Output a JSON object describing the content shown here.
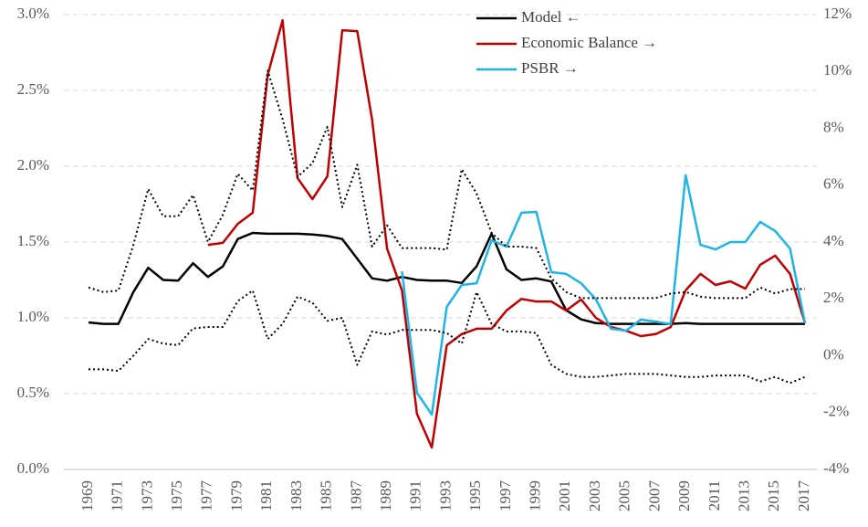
{
  "chart_data": {
    "type": "line",
    "x": [
      1969,
      1970,
      1971,
      1972,
      1973,
      1974,
      1975,
      1976,
      1977,
      1978,
      1979,
      1980,
      1981,
      1982,
      1983,
      1984,
      1985,
      1986,
      1987,
      1988,
      1989,
      1990,
      1991,
      1992,
      1993,
      1994,
      1995,
      1996,
      1997,
      1998,
      1999,
      2000,
      2001,
      2002,
      2003,
      2004,
      2005,
      2006,
      2007,
      2008,
      2009,
      2010,
      2011,
      2012,
      2013,
      2014,
      2015,
      2016,
      2017
    ],
    "xlim": [
      1969,
      2017
    ],
    "xticks": [
      1969,
      1971,
      1973,
      1975,
      1977,
      1979,
      1981,
      1983,
      1985,
      1987,
      1989,
      1991,
      1993,
      1995,
      1997,
      1999,
      2001,
      2003,
      2005,
      2007,
      2009,
      2011,
      2013,
      2015,
      2017
    ],
    "ylim": [
      0,
      3
    ],
    "yticks": [
      {
        "value": 0,
        "label": "0.0%"
      },
      {
        "value": 0.5,
        "label": "0.5%"
      },
      {
        "value": 1,
        "label": "1.0%"
      },
      {
        "value": 1.5,
        "label": "1.5%"
      },
      {
        "value": 2,
        "label": "2.0%"
      },
      {
        "value": 2.5,
        "label": "2.5%"
      },
      {
        "value": 3,
        "label": "3.0%"
      }
    ],
    "y2lim": [
      -4,
      12
    ],
    "y2ticks": [
      {
        "value": -4,
        "label": "-4%"
      },
      {
        "value": -2,
        "label": "-2%"
      },
      {
        "value": 0,
        "label": "0%"
      },
      {
        "value": 2,
        "label": "2%"
      },
      {
        "value": 4,
        "label": "4%"
      },
      {
        "value": 6,
        "label": "6%"
      },
      {
        "value": 8,
        "label": "8%"
      },
      {
        "value": 10,
        "label": "10%"
      },
      {
        "value": 12,
        "label": "12%"
      }
    ],
    "grid": true,
    "legend": "top",
    "series": [
      {
        "name": "Model ←",
        "color": "#000000",
        "values": [
          0.97,
          0.96,
          0.96,
          1.17,
          1.33,
          1.25,
          1.245,
          1.36,
          1.27,
          1.34,
          1.52,
          1.56,
          1.555,
          1.555,
          1.555,
          1.55,
          1.54,
          1.52,
          1.39,
          1.26,
          1.245,
          1.27,
          1.25,
          1.245,
          1.245,
          1.23,
          1.34,
          1.555,
          1.32,
          1.25,
          1.26,
          1.24,
          1.05,
          0.99,
          0.965,
          0.96,
          0.96,
          0.96,
          0.96,
          0.96,
          0.965,
          0.96,
          0.96,
          0.96,
          0.96,
          0.96,
          0.96,
          0.96,
          0.96
        ]
      },
      {
        "name": "Economic Balance →",
        "color": "#c00000",
        "axis": "y2",
        "values": [
          null,
          null,
          null,
          null,
          null,
          null,
          null,
          null,
          3.9,
          3.97,
          4.64,
          5.03,
          9.88,
          11.8,
          6.25,
          5.51,
          6.31,
          11.45,
          11.42,
          8.3,
          3.77,
          2.3,
          -2.04,
          -3.23,
          0.37,
          0.76,
          0.95,
          0.95,
          1.59,
          2.0,
          1.91,
          1.91,
          1.59,
          1.98,
          1.33,
          1.01,
          0.88,
          0.69,
          0.76,
          1.01,
          2.3,
          2.88,
          2.49,
          2.62,
          2.36,
          3.2,
          3.52,
          2.88,
          1.14
        ]
      },
      {
        "name": "PSBR →",
        "color": "#1eb4e6",
        "axis": "y2",
        "values": [
          null,
          null,
          null,
          null,
          null,
          null,
          null,
          null,
          null,
          null,
          null,
          null,
          null,
          null,
          null,
          null,
          null,
          null,
          null,
          null,
          null,
          2.97,
          -1.3,
          -2.07,
          1.72,
          2.49,
          2.55,
          4.06,
          3.84,
          5.03,
          5.06,
          2.94,
          2.88,
          2.55,
          1.98,
          0.95,
          0.88,
          1.27,
          1.2,
          1.11,
          6.35,
          3.9,
          3.74,
          4.0,
          4.0,
          4.71,
          4.39,
          3.77,
          1.14
        ]
      },
      {
        "color": "#000000",
        "dash": "dotted",
        "values": [
          1.2,
          1.17,
          1.18,
          1.48,
          1.85,
          1.67,
          1.67,
          1.81,
          1.5,
          1.68,
          1.95,
          1.84,
          2.63,
          2.31,
          1.93,
          2.02,
          2.26,
          1.73,
          2.01,
          1.47,
          1.61,
          1.46,
          1.46,
          1.46,
          1.45,
          1.98,
          1.82,
          1.56,
          1.47,
          1.47,
          1.46,
          1.26,
          1.17,
          1.13,
          1.13,
          1.13,
          1.13,
          1.13,
          1.13,
          1.16,
          1.17,
          1.14,
          1.13,
          1.13,
          1.13,
          1.2,
          1.16,
          1.19,
          1.19
        ]
      },
      {
        "color": "#000000",
        "dash": "dotted",
        "values": [
          0.66,
          0.66,
          0.65,
          0.75,
          0.86,
          0.83,
          0.82,
          0.93,
          0.94,
          0.94,
          1.11,
          1.18,
          0.86,
          0.96,
          1.14,
          1.1,
          0.98,
          1.0,
          0.69,
          0.91,
          0.89,
          0.92,
          0.92,
          0.92,
          0.9,
          0.83,
          1.17,
          0.96,
          0.91,
          0.91,
          0.9,
          0.69,
          0.63,
          0.61,
          0.61,
          0.62,
          0.63,
          0.63,
          0.63,
          0.62,
          0.61,
          0.61,
          0.62,
          0.62,
          0.62,
          0.58,
          0.61,
          0.57,
          0.61
        ]
      }
    ]
  }
}
